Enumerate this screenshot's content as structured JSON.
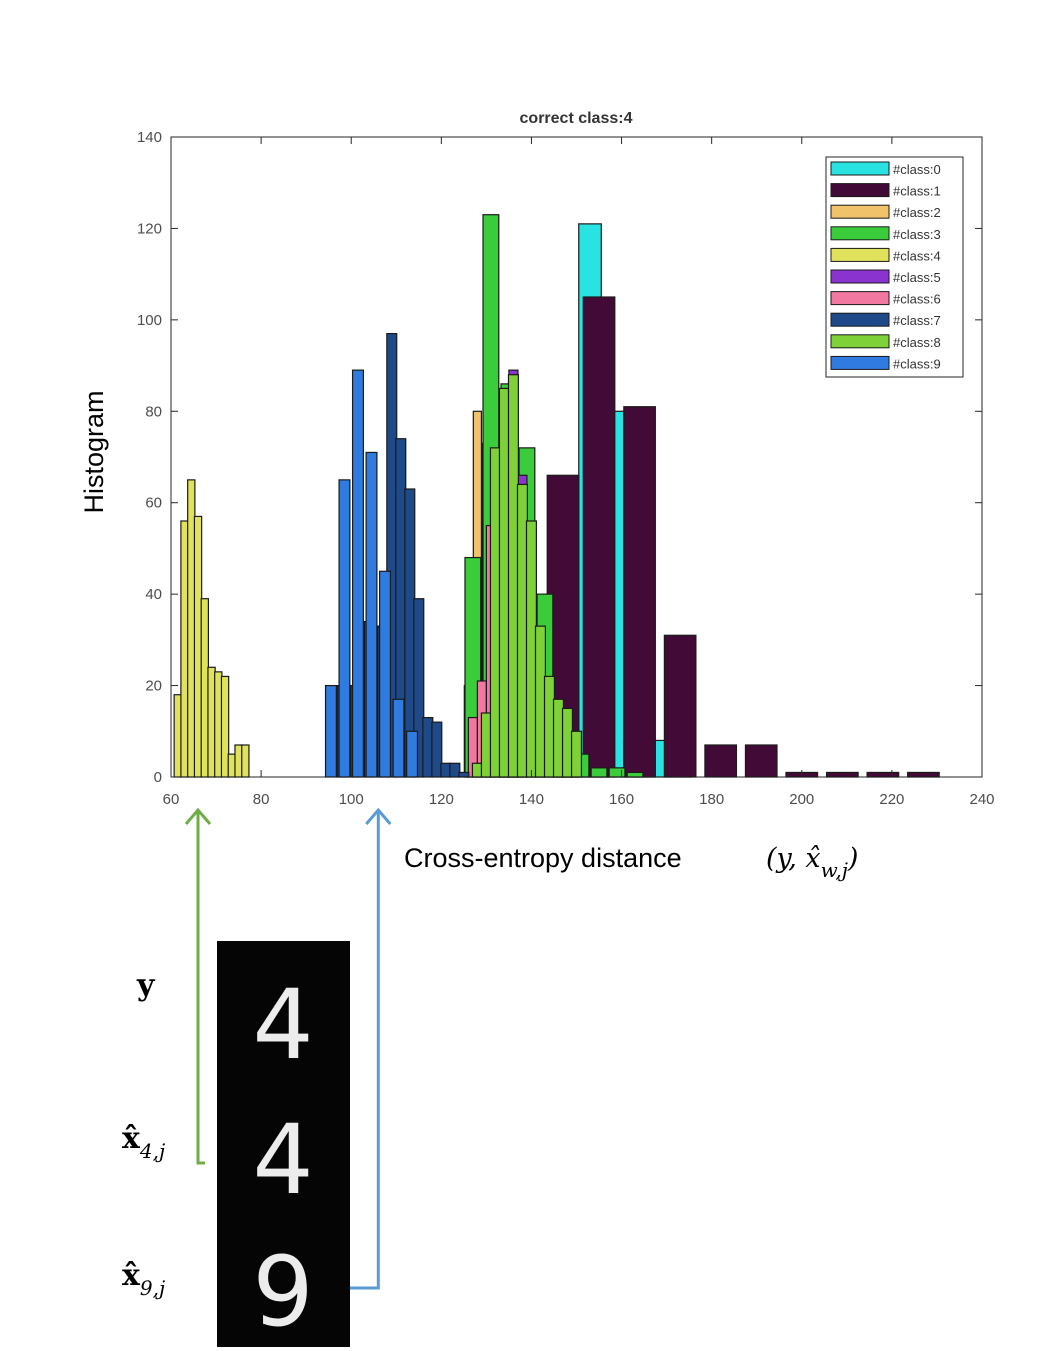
{
  "chart_data": {
    "type": "bar",
    "title": "correct class:4",
    "ylabel": "Histogram",
    "xlabel": "Cross-entropy distance",
    "xlabel_math": "(y, x̂",
    "xlabel_math_sub": "w,j",
    "xlabel_math_close": ")",
    "xlim": [
      60,
      240
    ],
    "ylim": [
      0,
      140
    ],
    "xticks": [
      60,
      80,
      100,
      120,
      140,
      160,
      180,
      200,
      220,
      240
    ],
    "yticks": [
      0,
      20,
      40,
      60,
      80,
      100,
      120,
      140
    ],
    "legend_position": "top-right",
    "series": [
      {
        "name": "#class:0",
        "color": "#29e3e3",
        "width": 5,
        "bars": [
          [
            148,
            18
          ],
          [
            153,
            121
          ],
          [
            158,
            80
          ],
          [
            163,
            8
          ],
          [
            168,
            8
          ],
          [
            173,
            2
          ]
        ]
      },
      {
        "name": "#class:1",
        "color": "#420a36",
        "width": 7,
        "bars": [
          [
            147,
            66
          ],
          [
            155,
            105
          ],
          [
            164,
            81
          ],
          [
            173,
            31
          ],
          [
            182,
            7
          ],
          [
            191,
            7
          ],
          [
            200,
            1
          ],
          [
            209,
            1
          ],
          [
            218,
            1
          ],
          [
            227,
            1
          ]
        ]
      },
      {
        "name": "#class:2",
        "color": "#f0c36b",
        "width": 1.8,
        "bars": [
          [
            126,
            20
          ],
          [
            128,
            80
          ],
          [
            130,
            73
          ],
          [
            132,
            47
          ],
          [
            134,
            33
          ],
          [
            136,
            18
          ],
          [
            138,
            8
          ],
          [
            140,
            2
          ],
          [
            142,
            1
          ]
        ]
      },
      {
        "name": "#class:3",
        "color": "#3bcc3b",
        "width": 3.5,
        "bars": [
          [
            127,
            48
          ],
          [
            131,
            123
          ],
          [
            135,
            86
          ],
          [
            139,
            72
          ],
          [
            143,
            40
          ],
          [
            147,
            15
          ],
          [
            151,
            5
          ],
          [
            155,
            2
          ],
          [
            159,
            2
          ],
          [
            163,
            1
          ]
        ]
      },
      {
        "name": "#class:4",
        "color": "#e0e25c",
        "width": 1.6,
        "bars": [
          [
            61.5,
            18
          ],
          [
            63,
            56
          ],
          [
            64.5,
            65
          ],
          [
            66,
            57
          ],
          [
            67.5,
            39
          ],
          [
            69,
            24
          ],
          [
            70.5,
            23
          ],
          [
            72,
            22
          ],
          [
            73.5,
            5
          ],
          [
            75,
            7
          ],
          [
            76.5,
            7
          ]
        ]
      },
      {
        "name": "#class:5",
        "color": "#8a33cf",
        "width": 2,
        "bars": [
          [
            134,
            78
          ],
          [
            136,
            89
          ],
          [
            138,
            66
          ],
          [
            140,
            33
          ],
          [
            142,
            15
          ],
          [
            144,
            8
          ],
          [
            146,
            3
          ],
          [
            148,
            2
          ],
          [
            150,
            1
          ]
        ]
      },
      {
        "name": "#class:6",
        "color": "#f277a1",
        "width": 2,
        "bars": [
          [
            127,
            13
          ],
          [
            129,
            21
          ],
          [
            131,
            55
          ],
          [
            133,
            34
          ],
          [
            135,
            13
          ],
          [
            137,
            5
          ]
        ]
      },
      {
        "name": "#class:7",
        "color": "#1f4a8a",
        "width": 2.2,
        "bars": [
          [
            98,
            20
          ],
          [
            101,
            20
          ],
          [
            104,
            34
          ],
          [
            107,
            33
          ],
          [
            109,
            97
          ],
          [
            111,
            74
          ],
          [
            113,
            63
          ],
          [
            115,
            39
          ],
          [
            117,
            13
          ],
          [
            119,
            12
          ],
          [
            121,
            3
          ],
          [
            123,
            3
          ],
          [
            125,
            1
          ]
        ]
      },
      {
        "name": "#class:8",
        "color": "#7ed136",
        "width": 2.2,
        "bars": [
          [
            128,
            3
          ],
          [
            130,
            14
          ],
          [
            132,
            72
          ],
          [
            134,
            85
          ],
          [
            136,
            88
          ],
          [
            138,
            64
          ],
          [
            140,
            56
          ],
          [
            142,
            33
          ],
          [
            144,
            22
          ],
          [
            146,
            17
          ],
          [
            148,
            15
          ],
          [
            150,
            10
          ]
        ]
      },
      {
        "name": "#class:9",
        "color": "#2f7be0",
        "width": 2.4,
        "bars": [
          [
            95.5,
            20
          ],
          [
            98.5,
            65
          ],
          [
            101.5,
            89
          ],
          [
            104.5,
            71
          ],
          [
            107.5,
            45
          ],
          [
            110.5,
            17
          ],
          [
            113.5,
            10
          ]
        ]
      }
    ]
  },
  "annotations": {
    "label_y": "y",
    "label_x4_main": "x̂",
    "label_x4_sub": "4,j",
    "label_x9_main": "x̂",
    "label_x9_sub": "9,j",
    "arrow_green_color": "#70ad47",
    "arrow_blue_color": "#5b9bd5",
    "arrow_green_value": 66,
    "arrow_blue_value": 106,
    "digit_y": "4",
    "digit_x4": "4",
    "digit_x9": "9"
  }
}
